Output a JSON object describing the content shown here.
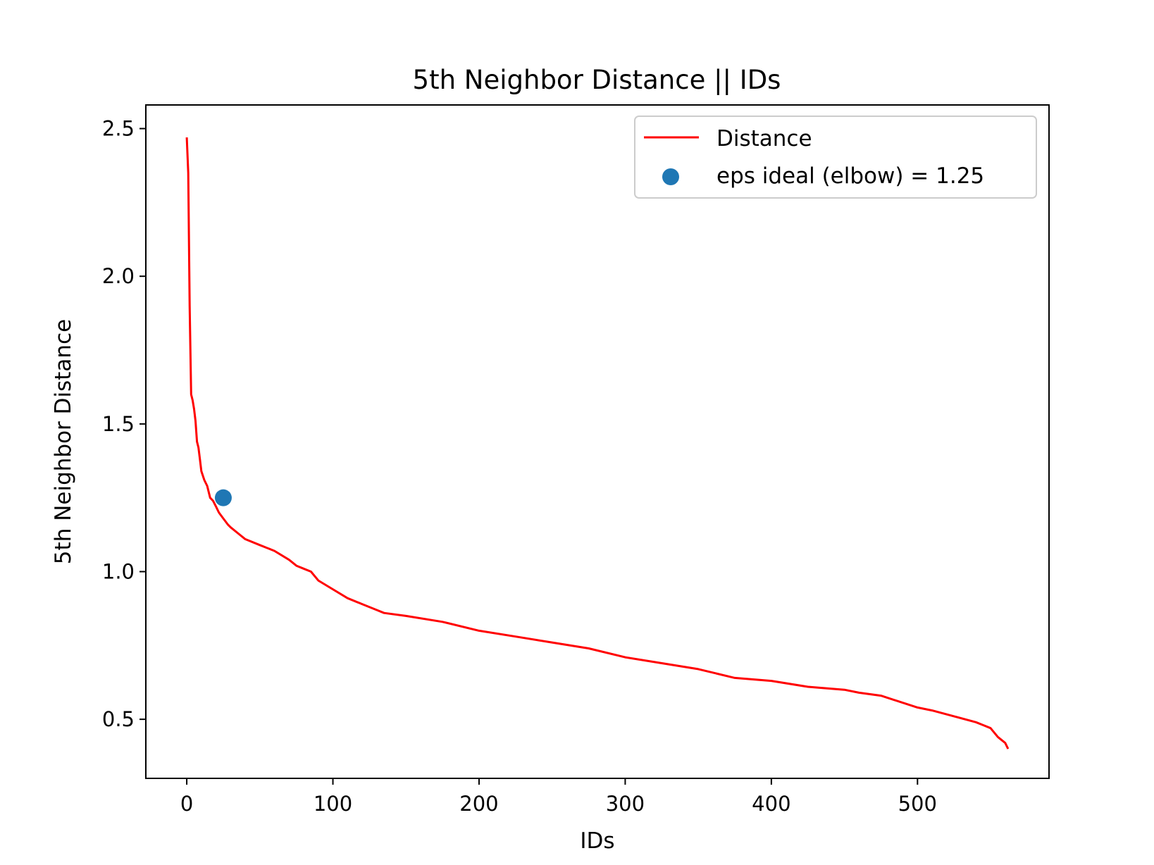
{
  "chart_data": {
    "type": "line",
    "title": "5th Neighbor Distance || IDs",
    "xlabel": "IDs",
    "ylabel": "5th Neighbor Distance",
    "xlim": [
      -28,
      590
    ],
    "ylim": [
      0.3,
      2.58
    ],
    "xticks": [
      0,
      100,
      200,
      300,
      400,
      500
    ],
    "xtick_labels": [
      "0",
      "100",
      "200",
      "300",
      "400",
      "500"
    ],
    "yticks": [
      0.5,
      1.0,
      1.5,
      2.0,
      2.5
    ],
    "ytick_labels": [
      "0.5",
      "1.0",
      "1.5",
      "2.0",
      "2.5"
    ],
    "grid": false,
    "legend_position": "top-right",
    "series": [
      {
        "name": "Distance",
        "kind": "line",
        "color": "#ff0000",
        "x": [
          0,
          1,
          2,
          3,
          4,
          5,
          6,
          7,
          8,
          9,
          10,
          12,
          14,
          16,
          18,
          20,
          22,
          25,
          28,
          30,
          35,
          40,
          50,
          60,
          70,
          75,
          80,
          85,
          90,
          100,
          110,
          120,
          130,
          135,
          150,
          175,
          200,
          225,
          250,
          275,
          300,
          325,
          350,
          375,
          400,
          425,
          450,
          460,
          475,
          500,
          510,
          525,
          540,
          545,
          550,
          555,
          560,
          562
        ],
        "y": [
          2.47,
          2.35,
          1.9,
          1.6,
          1.58,
          1.55,
          1.51,
          1.44,
          1.42,
          1.38,
          1.34,
          1.31,
          1.29,
          1.25,
          1.24,
          1.22,
          1.2,
          1.18,
          1.16,
          1.15,
          1.13,
          1.11,
          1.09,
          1.07,
          1.04,
          1.02,
          1.01,
          1.0,
          0.97,
          0.94,
          0.91,
          0.89,
          0.87,
          0.86,
          0.85,
          0.83,
          0.8,
          0.78,
          0.76,
          0.74,
          0.71,
          0.69,
          0.67,
          0.64,
          0.63,
          0.61,
          0.6,
          0.59,
          0.58,
          0.54,
          0.53,
          0.51,
          0.49,
          0.48,
          0.47,
          0.44,
          0.42,
          0.4
        ]
      },
      {
        "name": "eps ideal (elbow) = 1.25",
        "kind": "scatter",
        "color": "#1f77b4",
        "x": [
          25
        ],
        "y": [
          1.25
        ]
      }
    ]
  }
}
